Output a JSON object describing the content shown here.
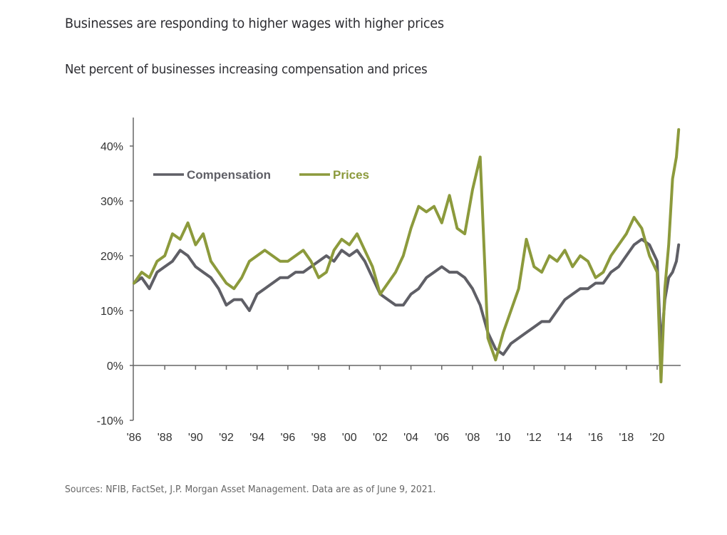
{
  "header": {
    "title": "Businesses are responding to higher wages with higher prices",
    "subtitle": "Net percent of businesses increasing compensation and prices"
  },
  "footer": {
    "source": "Sources: NFIB, FactSet, J.P. Morgan Asset Management. Data are as of June 9, 2021."
  },
  "colors": {
    "compensation": "#5f5f66",
    "prices": "#8c9a3c",
    "axis": "#666666"
  },
  "chart_data": {
    "type": "line",
    "title": "Businesses are responding to higher wages with higher prices",
    "subtitle": "Net percent of businesses increasing compensation and prices",
    "xlabel": "",
    "ylabel": "",
    "ylim": [
      -10,
      45
    ],
    "xlim": [
      1986,
      2021.5
    ],
    "y_ticks": [
      -10,
      0,
      10,
      20,
      30,
      40
    ],
    "y_tick_labels": [
      "-10%",
      "0%",
      "10%",
      "20%",
      "30%",
      "40%"
    ],
    "x_ticks": [
      1986,
      1988,
      1990,
      1992,
      1994,
      1996,
      1998,
      2000,
      2002,
      2004,
      2006,
      2008,
      2010,
      2012,
      2014,
      2016,
      2018,
      2020
    ],
    "x_tick_labels": [
      "'86",
      "'88",
      "'90",
      "'92",
      "'94",
      "'96",
      "'98",
      "'00",
      "'02",
      "'04",
      "'06",
      "'08",
      "'10",
      "'12",
      "'14",
      "'16",
      "'18",
      "'20"
    ],
    "grid": false,
    "legend": {
      "placement": "top-left",
      "entries": [
        "Compensation",
        "Prices"
      ]
    },
    "series": [
      {
        "name": "Compensation",
        "x": [
          1986.0,
          1986.5,
          1987.0,
          1987.5,
          1988.0,
          1988.5,
          1989.0,
          1989.5,
          1990.0,
          1990.5,
          1991.0,
          1991.5,
          1992.0,
          1992.5,
          1993.0,
          1993.5,
          1994.0,
          1994.5,
          1995.0,
          1995.5,
          1996.0,
          1996.5,
          1997.0,
          1997.5,
          1998.0,
          1998.5,
          1999.0,
          1999.5,
          2000.0,
          2000.5,
          2001.0,
          2001.5,
          2002.0,
          2002.5,
          2003.0,
          2003.5,
          2004.0,
          2004.5,
          2005.0,
          2005.5,
          2006.0,
          2006.5,
          2007.0,
          2007.5,
          2008.0,
          2008.5,
          2009.0,
          2009.5,
          2010.0,
          2010.5,
          2011.0,
          2011.5,
          2012.0,
          2012.5,
          2013.0,
          2013.5,
          2014.0,
          2014.5,
          2015.0,
          2015.5,
          2016.0,
          2016.5,
          2017.0,
          2017.5,
          2018.0,
          2018.5,
          2019.0,
          2019.5,
          2020.0,
          2020.25,
          2020.5,
          2020.75,
          2021.0,
          2021.25,
          2021.4
        ],
        "values": [
          15,
          16,
          14,
          17,
          18,
          19,
          21,
          20,
          18,
          17,
          16,
          14,
          11,
          12,
          12,
          10,
          13,
          14,
          15,
          16,
          16,
          17,
          17,
          18,
          19,
          20,
          19,
          21,
          20,
          21,
          19,
          16,
          13,
          12,
          11,
          11,
          13,
          14,
          16,
          17,
          18,
          17,
          17,
          16,
          14,
          11,
          6,
          3,
          2,
          4,
          5,
          6,
          7,
          8,
          8,
          10,
          12,
          13,
          14,
          14,
          15,
          15,
          17,
          18,
          20,
          22,
          23,
          22,
          19,
          3,
          12,
          16,
          17,
          19,
          22
        ]
      },
      {
        "name": "Prices",
        "x": [
          1986.0,
          1986.5,
          1987.0,
          1987.5,
          1988.0,
          1988.5,
          1989.0,
          1989.5,
          1990.0,
          1990.5,
          1991.0,
          1991.5,
          1992.0,
          1992.5,
          1993.0,
          1993.5,
          1994.0,
          1994.5,
          1995.0,
          1995.5,
          1996.0,
          1996.5,
          1997.0,
          1997.5,
          1998.0,
          1998.5,
          1999.0,
          1999.5,
          2000.0,
          2000.5,
          2001.0,
          2001.5,
          2002.0,
          2002.5,
          2003.0,
          2003.5,
          2004.0,
          2004.5,
          2005.0,
          2005.5,
          2006.0,
          2006.5,
          2007.0,
          2007.5,
          2008.0,
          2008.5,
          2009.0,
          2009.5,
          2010.0,
          2010.5,
          2011.0,
          2011.5,
          2012.0,
          2012.5,
          2013.0,
          2013.5,
          2014.0,
          2014.5,
          2015.0,
          2015.5,
          2016.0,
          2016.5,
          2017.0,
          2017.5,
          2018.0,
          2018.5,
          2019.0,
          2019.5,
          2020.0,
          2020.25,
          2020.5,
          2020.75,
          2021.0,
          2021.25,
          2021.4
        ],
        "values": [
          15,
          17,
          16,
          19,
          20,
          24,
          23,
          26,
          22,
          24,
          19,
          17,
          15,
          14,
          16,
          19,
          20,
          21,
          20,
          19,
          19,
          20,
          21,
          19,
          16,
          17,
          21,
          23,
          22,
          24,
          21,
          18,
          13,
          15,
          17,
          20,
          25,
          29,
          28,
          29,
          26,
          31,
          25,
          24,
          32,
          38,
          5,
          1,
          6,
          10,
          14,
          23,
          18,
          17,
          20,
          19,
          21,
          18,
          20,
          19,
          16,
          17,
          20,
          22,
          24,
          27,
          25,
          20,
          17,
          -3,
          14,
          22,
          34,
          38,
          43
        ]
      }
    ]
  }
}
